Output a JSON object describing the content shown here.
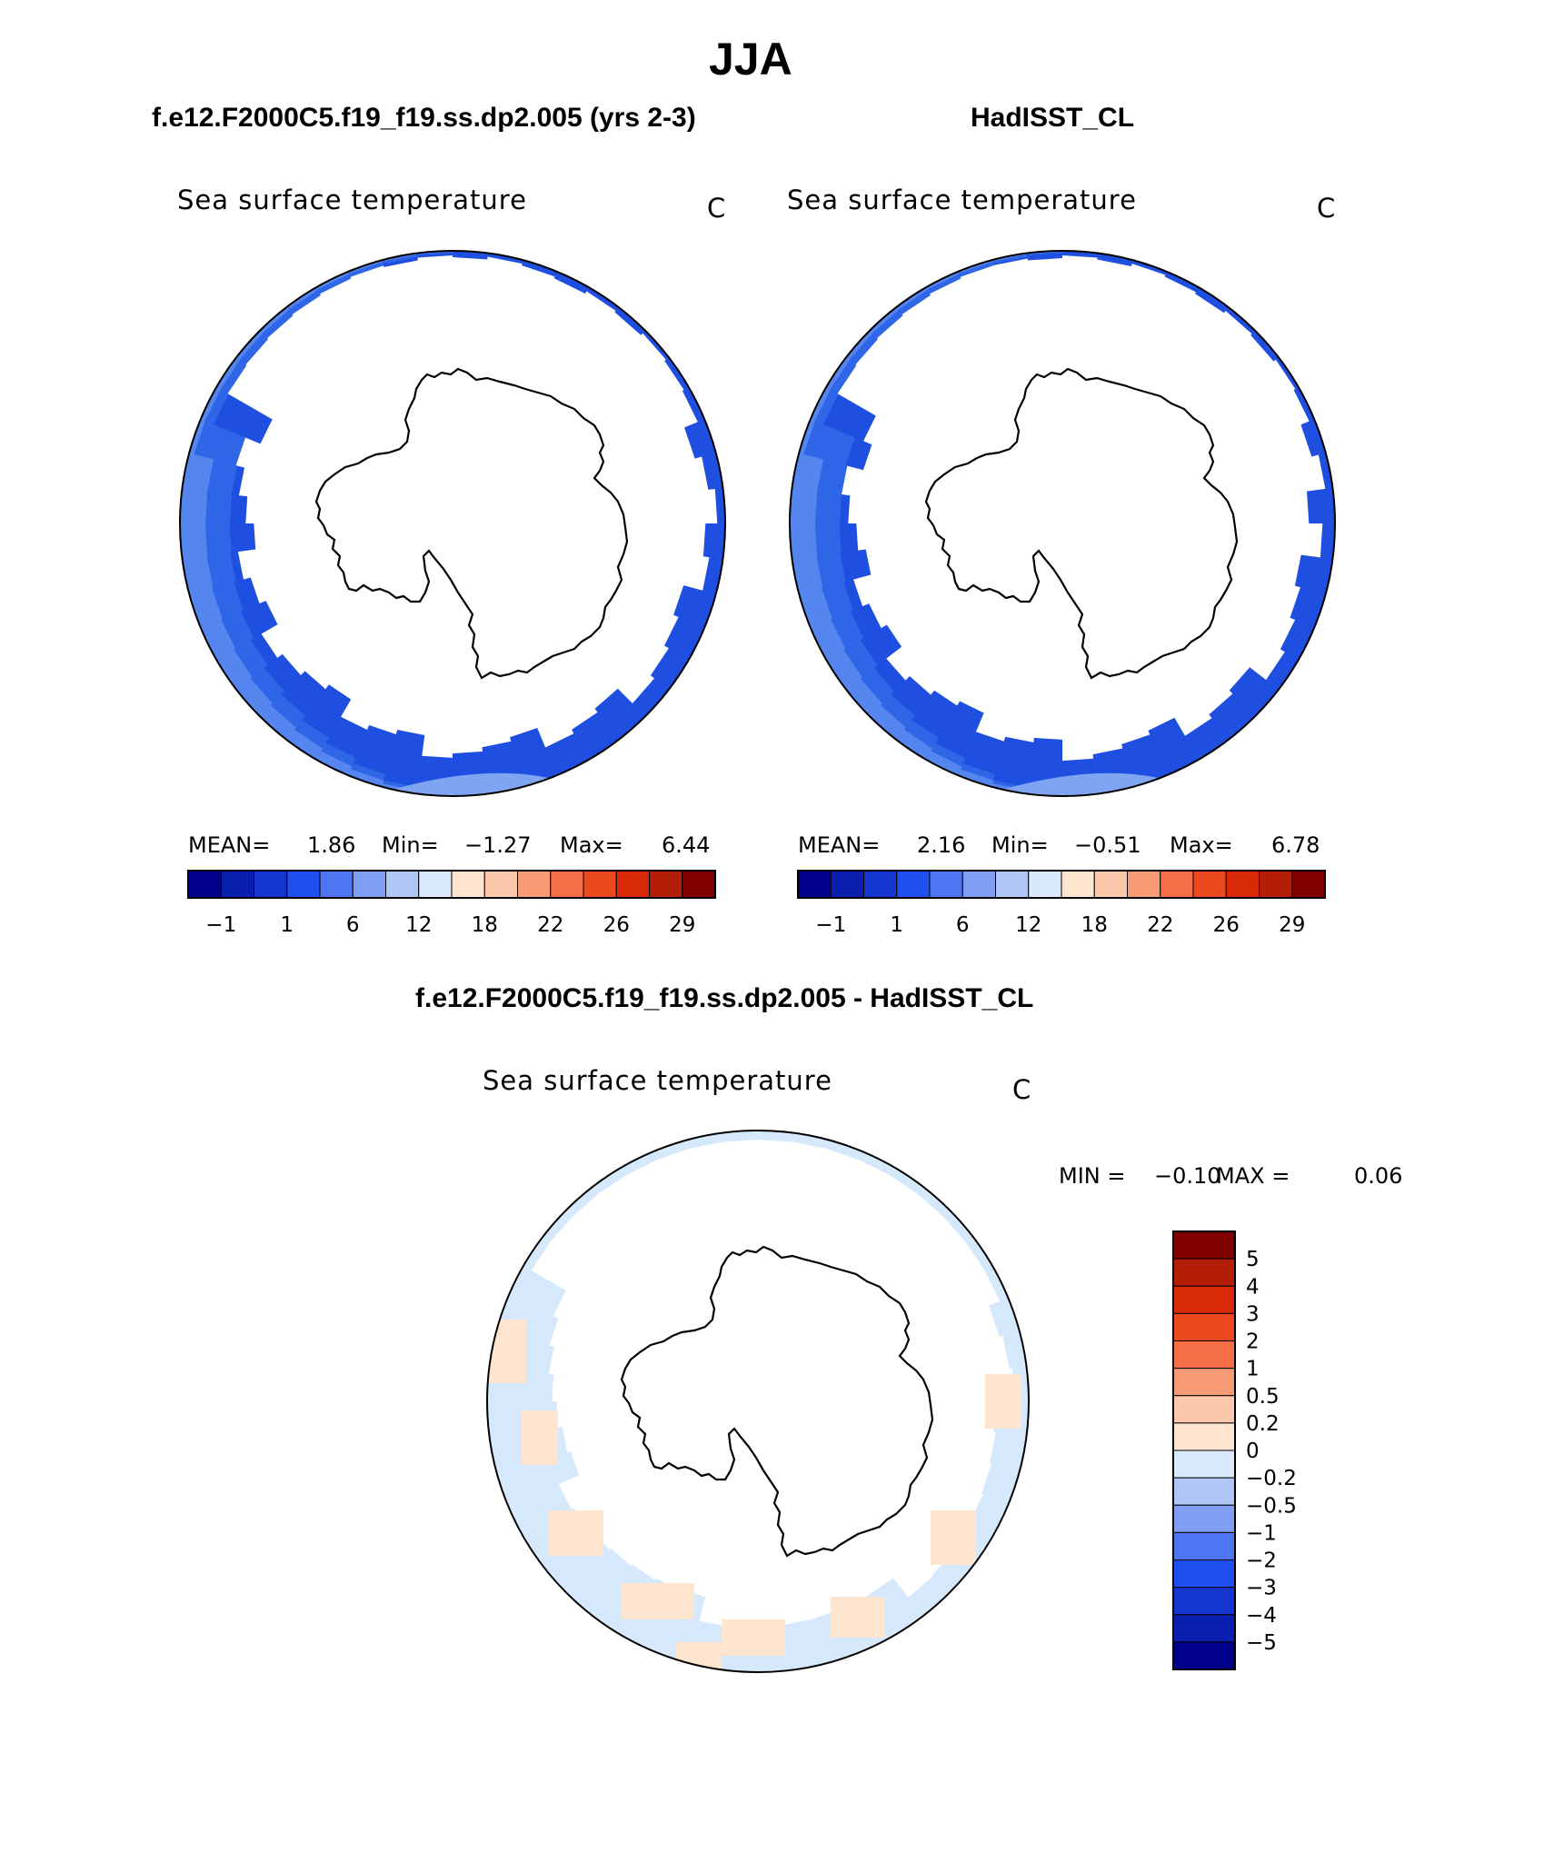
{
  "title": "JJA",
  "colors": {
    "land": "#ffffff",
    "coast": "#000000",
    "ocean_deep": "#1f4fe0",
    "ocean_mid": "#2f66e8",
    "ocean_light": "#5585ef",
    "ocean_lightest": "#7fa4f2",
    "diff_neg": "#d6e8fb",
    "diff_pos": "#fde5d0"
  },
  "panels": [
    {
      "heading": "f.e12.F2000C5.f19_f19.ss.dp2.005 (yrs 2-3)",
      "label": "Sea surface temperature",
      "units": "C",
      "stats": {
        "mean_label": "MEAN=",
        "mean": "1.86",
        "min_label": "Min=",
        "min": "−1.27",
        "max_label": "Max=",
        "max": "6.44"
      }
    },
    {
      "heading": "HadISST_CL",
      "label": "Sea surface temperature",
      "units": "C",
      "stats": {
        "mean_label": "MEAN=",
        "mean": "2.16",
        "min_label": "Min=",
        "min": "−0.51",
        "max_label": "Max=",
        "max": "6.78"
      }
    },
    {
      "heading": "f.e12.F2000C5.f19_f19.ss.dp2.005 - HadISST_CL",
      "label": "Sea surface temperature",
      "units": "C",
      "stats": {
        "min_label": "MIN =",
        "min": "−0.10",
        "max_label": "MAX =",
        "max": "0.06"
      }
    }
  ],
  "colorbar_horizontal": {
    "colors": [
      "#00008b",
      "#0a1fb0",
      "#1535cf",
      "#1f4fee",
      "#4f76f2",
      "#7f9ef4",
      "#b0c6f7",
      "#dbe9fc",
      "#fde5d0",
      "#fbc8ac",
      "#f79a76",
      "#f46f45",
      "#ec4a1e",
      "#d92a08",
      "#b41d06",
      "#800000"
    ],
    "tick_labels": [
      "−1",
      "1",
      "6",
      "12",
      "18",
      "22",
      "26",
      "29"
    ]
  },
  "colorbar_vertical": {
    "colors_top_to_bottom": [
      "#800000",
      "#b41d06",
      "#d92a08",
      "#ec4a1e",
      "#f46f45",
      "#f79a76",
      "#fbc8ac",
      "#fde5d0",
      "#dbe9fc",
      "#b0c6f7",
      "#7f9ef4",
      "#4f76f2",
      "#1f4fee",
      "#1535cf",
      "#0a1fb0",
      "#00008b"
    ],
    "tick_labels": [
      "5",
      "4",
      "3",
      "2",
      "1",
      "0.5",
      "0.2",
      "0",
      "−0.2",
      "−0.5",
      "−1",
      "−2",
      "−3",
      "−4",
      "−5"
    ]
  }
}
